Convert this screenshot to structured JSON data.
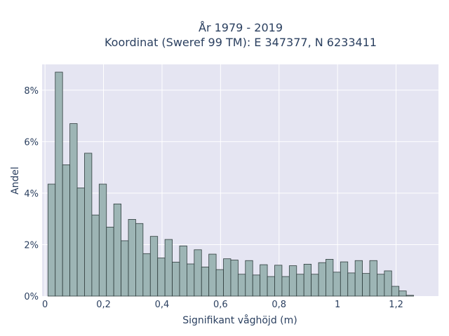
{
  "chart_data": {
    "type": "bar",
    "title_lines": [
      "År 1979 - 2019",
      "Koordinat (Sweref 99 TM): E 347377, N 6233411"
    ],
    "xlabel": "Signifikant våghöjd (m)",
    "ylabel": "Andel",
    "bin_width": 0.025,
    "bin_start": 0.01,
    "xlim": [
      -0.01,
      1.345
    ],
    "ylim": [
      0,
      0.09
    ],
    "x_ticks": [
      {
        "value": 0,
        "label": "0"
      },
      {
        "value": 0.2,
        "label": "0,2"
      },
      {
        "value": 0.4,
        "label": "0,4"
      },
      {
        "value": 0.6,
        "label": "0,6"
      },
      {
        "value": 0.8,
        "label": "0,8"
      },
      {
        "value": 1.0,
        "label": "1"
      },
      {
        "value": 1.2,
        "label": "1,2"
      }
    ],
    "y_ticks": [
      {
        "value": 0,
        "label": "0%"
      },
      {
        "value": 0.02,
        "label": "2%"
      },
      {
        "value": 0.04,
        "label": "4%"
      },
      {
        "value": 0.06,
        "label": "6%"
      },
      {
        "value": 0.08,
        "label": "8%"
      }
    ],
    "values": [
      0.0435,
      0.087,
      0.051,
      0.067,
      0.042,
      0.0555,
      0.0315,
      0.0435,
      0.0268,
      0.0358,
      0.0215,
      0.0298,
      0.0282,
      0.0165,
      0.0232,
      0.0148,
      0.022,
      0.0132,
      0.0195,
      0.0125,
      0.018,
      0.0113,
      0.0163,
      0.0103,
      0.0145,
      0.014,
      0.0085,
      0.0138,
      0.0082,
      0.0122,
      0.0076,
      0.012,
      0.0076,
      0.0118,
      0.0085,
      0.0124,
      0.0085,
      0.013,
      0.0143,
      0.0093,
      0.0133,
      0.009,
      0.0138,
      0.0088,
      0.0138,
      0.0085,
      0.0098,
      0.0038,
      0.002,
      0.0003
    ]
  },
  "colors": {
    "plot_bg": "#e5e5f2",
    "grid": "#ffffff",
    "bar_fill": "#9db5b5",
    "bar_stroke": "#2f3d3d"
  }
}
